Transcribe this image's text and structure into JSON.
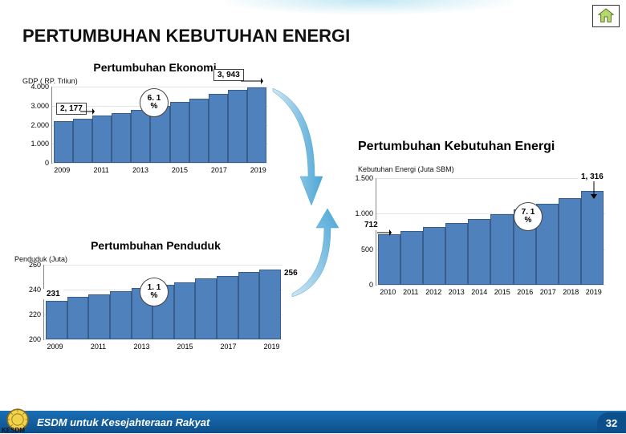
{
  "page_title": "PERTUMBUHAN KEBUTUHAN ENERGI",
  "footer_text": "ESDM untuk Kesejahteraan Rakyat",
  "kesdm_label": "KESDM",
  "page_number": "32",
  "home_icon_name": "home-icon",
  "chart_gdp": {
    "title": "Pertumbuhan Ekonomi",
    "axis_label": "GDP ( RP. Trliun)",
    "type": "bar",
    "ymin": 0,
    "ymax": 4000,
    "yticks": [
      0,
      1000,
      2000,
      3000,
      4000
    ],
    "x": [
      "2009",
      "2011",
      "2013",
      "2015",
      "2017",
      "2019"
    ],
    "series_full_x": [
      "2009",
      "2010",
      "2011",
      "2012",
      "2013",
      "2014",
      "2015",
      "2016",
      "2017",
      "2018",
      "2019"
    ],
    "values": [
      2177,
      2320,
      2470,
      2630,
      2800,
      2980,
      3180,
      3390,
      3610,
      3840,
      3943
    ],
    "bar_color": "#4f81bd",
    "callout_start": "2, 177",
    "callout_end": "3, 943",
    "rate_label": "6. 1\n%"
  },
  "chart_pop": {
    "title": "Pertumbuhan Penduduk",
    "axis_label": "Penduduk (Juta)",
    "type": "bar",
    "ymin": 200,
    "ymax": 260,
    "yticks": [
      200,
      220,
      240,
      260
    ],
    "x": [
      "2009",
      "2011",
      "2013",
      "2015",
      "2017",
      "2019"
    ],
    "series_full_x": [
      "2009",
      "2010",
      "2011",
      "2012",
      "2013",
      "2014",
      "2015",
      "2016",
      "2017",
      "2018",
      "2019"
    ],
    "values": [
      231,
      234,
      236,
      239,
      241,
      244,
      246,
      249,
      251,
      254,
      256
    ],
    "bar_color": "#4f81bd",
    "callout_start": "231",
    "callout_end": "256",
    "rate_label": "1. 1\n%"
  },
  "chart_energy": {
    "title": "Pertumbuhan Kebutuhan Energi",
    "axis_label": "Kebutuhan Energi (Juta SBM)",
    "type": "bar",
    "ymin": 0,
    "ymax": 1500,
    "yticks": [
      0,
      500,
      1000,
      1500
    ],
    "x": [
      "2010",
      "2011",
      "2012",
      "2013",
      "2014",
      "2015",
      "2016",
      "2017",
      "2018",
      "2019"
    ],
    "values": [
      712,
      760,
      815,
      870,
      930,
      995,
      1065,
      1140,
      1220,
      1316
    ],
    "bar_color": "#4f81bd",
    "callout_start": "712",
    "callout_end": "1, 316",
    "rate_label": "7. 1\n%"
  }
}
